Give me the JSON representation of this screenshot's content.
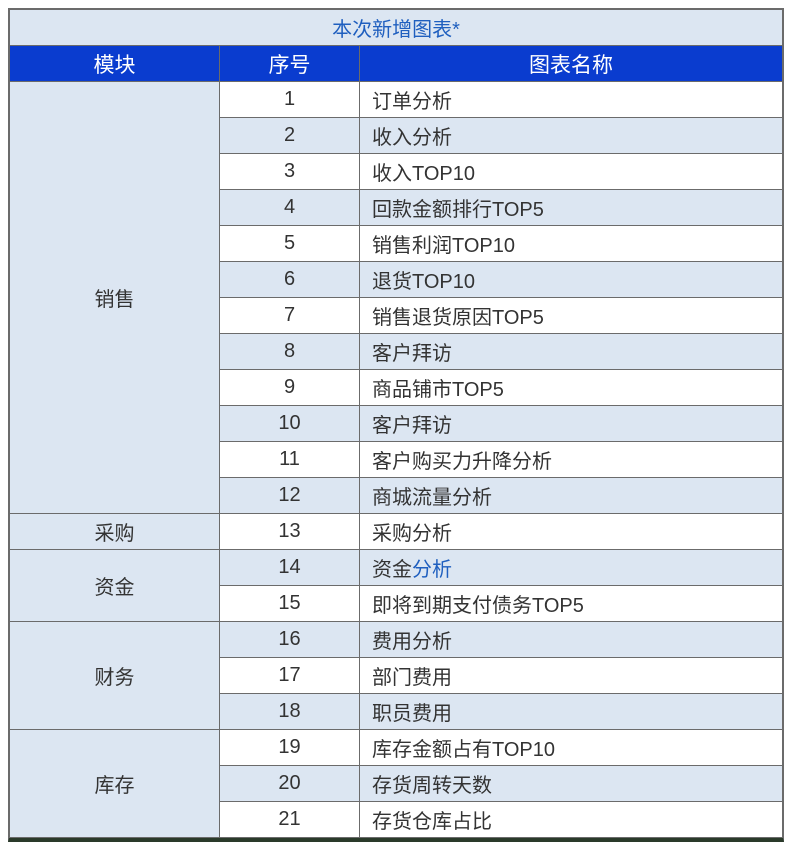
{
  "title": "本次新增图表*",
  "columns": {
    "module": "模块",
    "seq": "序号",
    "name": "图表名称"
  },
  "colors": {
    "title_bg": "#dce6f2",
    "title_text": "#1f5fbf",
    "header_bg": "#0a3ccf",
    "header_text": "#ffffff",
    "band_even": "#dce6f2",
    "band_odd": "#ffffff",
    "border": "#6b6b6b",
    "link": "#1f5fbf"
  },
  "modules": [
    {
      "name": "销售",
      "rows": [
        {
          "seq": "1",
          "name": "订单分析"
        },
        {
          "seq": "2",
          "name": "收入分析"
        },
        {
          "seq": "3",
          "name": "收入TOP10"
        },
        {
          "seq": "4",
          "name": "回款金额排行TOP5"
        },
        {
          "seq": "5",
          "name": "销售利润TOP10"
        },
        {
          "seq": "6",
          "name": "退货TOP10"
        },
        {
          "seq": "7",
          "name": "销售退货原因TOP5"
        },
        {
          "seq": "8",
          "name": "客户拜访"
        },
        {
          "seq": "9",
          "name": "商品铺市TOP5"
        },
        {
          "seq": "10",
          "name": "客户拜访"
        },
        {
          "seq": "11",
          "name": "客户购买力升降分析"
        },
        {
          "seq": "12",
          "name": "商城流量分析"
        }
      ]
    },
    {
      "name": "采购",
      "rows": [
        {
          "seq": "13",
          "name": "采购分析"
        }
      ]
    },
    {
      "name": "资金",
      "rows": [
        {
          "seq": "14",
          "name_parts": [
            {
              "text": "资金",
              "style": "plain"
            },
            {
              "text": "分析",
              "style": "link"
            }
          ]
        },
        {
          "seq": "15",
          "name": "即将到期支付债务TOP5"
        }
      ]
    },
    {
      "name": "财务",
      "rows": [
        {
          "seq": "16",
          "name": "费用分析"
        },
        {
          "seq": "17",
          "name": "部门费用"
        },
        {
          "seq": "18",
          "name": "职员费用"
        }
      ]
    },
    {
      "name": "库存",
      "rows": [
        {
          "seq": "19",
          "name": "库存金额占有TOP10"
        },
        {
          "seq": "20",
          "name": "存货周转天数"
        },
        {
          "seq": "21",
          "name": "存货仓库占比"
        }
      ]
    }
  ]
}
